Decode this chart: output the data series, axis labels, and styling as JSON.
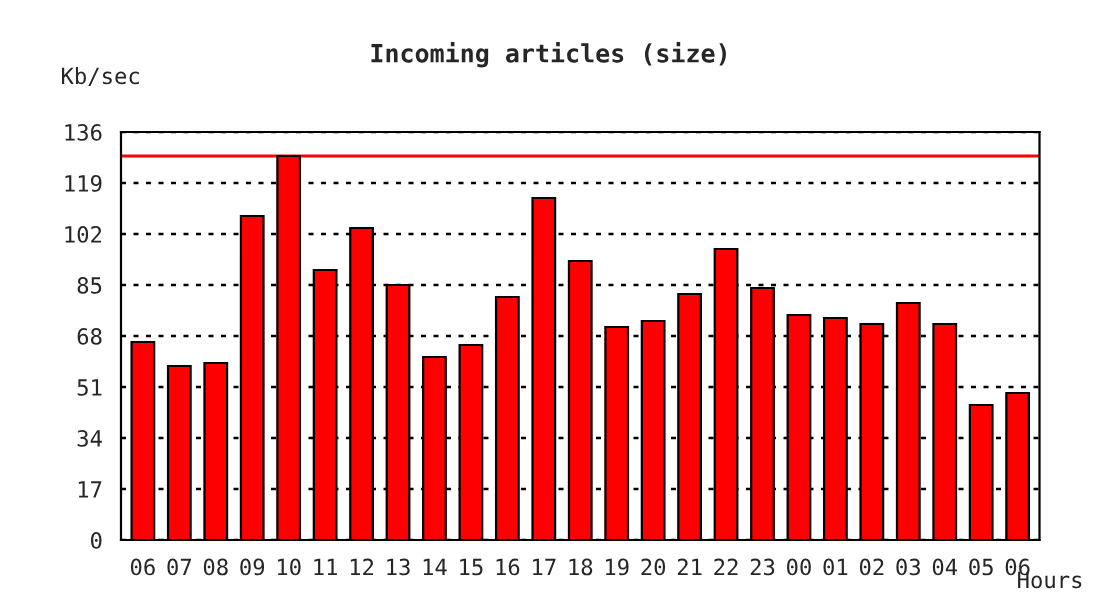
{
  "chart_data": {
    "type": "bar",
    "title": "Incoming articles (size)",
    "ylabel": "Kb/sec",
    "xlabel": "Hours",
    "categories": [
      "06",
      "07",
      "08",
      "09",
      "10",
      "11",
      "12",
      "13",
      "14",
      "15",
      "16",
      "17",
      "18",
      "19",
      "20",
      "21",
      "22",
      "23",
      "00",
      "01",
      "02",
      "03",
      "04",
      "05",
      "06"
    ],
    "series": [
      {
        "color": "#ff0000",
        "values": [
          66,
          58,
          59,
          108,
          128,
          90,
          104,
          85,
          61,
          65,
          81,
          114,
          93,
          71,
          73,
          82,
          97,
          84,
          75,
          74,
          72,
          79,
          72,
          45,
          49
        ]
      }
    ],
    "ylim": [
      0,
      136
    ],
    "yticks": [
      0,
      17,
      34,
      51,
      68,
      85,
      102,
      119,
      136
    ],
    "ref_lines": [
      {
        "axis": "y",
        "value": 128,
        "color": "#ff0000",
        "line_style": "solid"
      }
    ],
    "grid": "y",
    "legend": false
  }
}
